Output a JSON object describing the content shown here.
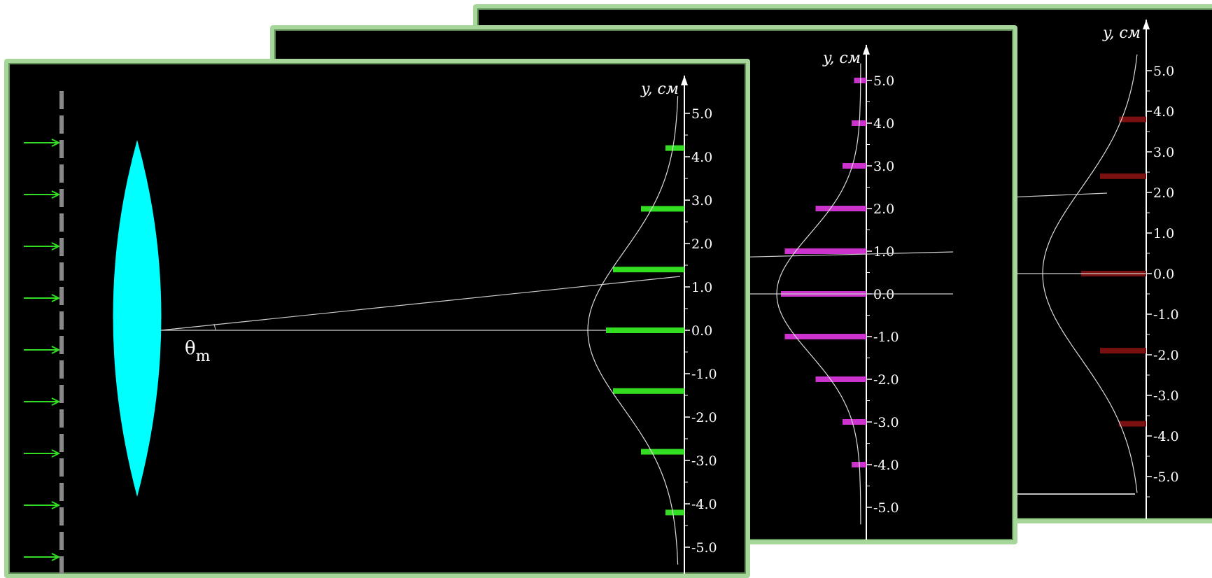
{
  "axis_label": "y, см",
  "tick_labels": [
    "5.0",
    "4.0",
    "3.0",
    "2.0",
    "1.0",
    "0.0",
    "-1.0",
    "-2.0",
    "-3.0",
    "-4.0",
    "-5.0"
  ],
  "tick_values": [
    5,
    4,
    3,
    2,
    1,
    0,
    -1,
    -2,
    -3,
    -4,
    -5
  ],
  "angle_label": "θ",
  "angle_subscript": "m",
  "panels": {
    "back": {
      "fringe_color": "#7a1010",
      "fringes": [
        {
          "y": 3.8,
          "strength": 0.3
        },
        {
          "y": 2.4,
          "strength": 0.6
        },
        {
          "y": 0.0,
          "strength": 0.9
        },
        {
          "y": -1.9,
          "strength": 0.6
        },
        {
          "y": -3.7,
          "strength": 0.3
        }
      ]
    },
    "middle": {
      "fringe_color": "#cc33cc",
      "fringes": [
        {
          "y": 5.0,
          "strength": 0.05
        },
        {
          "y": 4.0,
          "strength": 0.08
        },
        {
          "y": 3.0,
          "strength": 0.2
        },
        {
          "y": 2.0,
          "strength": 0.55
        },
        {
          "y": 1.0,
          "strength": 0.95
        },
        {
          "y": 0.0,
          "strength": 1.0
        },
        {
          "y": -1.0,
          "strength": 0.95
        },
        {
          "y": -2.0,
          "strength": 0.55
        },
        {
          "y": -3.0,
          "strength": 0.2
        },
        {
          "y": -4.0,
          "strength": 0.08
        }
      ]
    },
    "front": {
      "fringe_color": "#33dd22",
      "lens_color": "#00ffff",
      "arrow_color": "#33dd22",
      "fringes": [
        {
          "y": 4.2,
          "strength": 0.15
        },
        {
          "y": 2.8,
          "strength": 0.5
        },
        {
          "y": 1.4,
          "strength": 0.9
        },
        {
          "y": 0.0,
          "strength": 1.0
        },
        {
          "y": -1.4,
          "strength": 0.9
        },
        {
          "y": -2.8,
          "strength": 0.5
        },
        {
          "y": -4.2,
          "strength": 0.15
        }
      ]
    }
  }
}
